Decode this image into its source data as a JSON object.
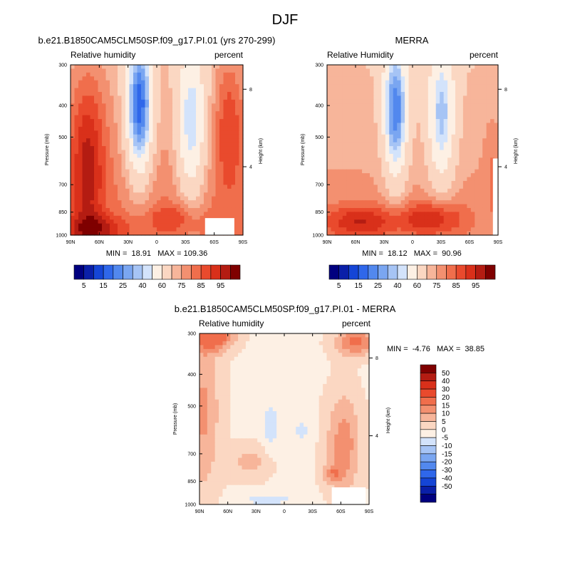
{
  "page_title": "DJF",
  "palette_abs": [
    "#00007f",
    "#0a1fa8",
    "#1545d6",
    "#2f67ea",
    "#5288ee",
    "#7aa6f1",
    "#a6c4f5",
    "#d3e3fb",
    "#fdf0e4",
    "#fbd7c2",
    "#f7b59a",
    "#f39070",
    "#f06e4c",
    "#e94a2d",
    "#d9301a",
    "#b41c12",
    "#7f0000"
  ],
  "palette_diff": [
    "#00007f",
    "#0a1fa8",
    "#1545d6",
    "#2f67ea",
    "#5288ee",
    "#7aa6f1",
    "#a6c4f5",
    "#d3e3fb",
    "#fdf0e4",
    "#fbd7c2",
    "#f7b59a",
    "#f39070",
    "#f06e4c",
    "#e94a2d",
    "#d9301a",
    "#b41c12",
    "#7f0000"
  ],
  "chart_data": [
    {
      "type": "heatmap",
      "title": "b.e21.B1850CAM5CLM50SP.f09_g17.PI.01 (yrs 270-299)",
      "left_label": "Relative humidity",
      "right_label": "percent",
      "xlabel": "",
      "ylabel": "Pressure (mb)",
      "ylabel_right": "Height (km)",
      "x_ticks": [
        "90N",
        "60N",
        "30N",
        "0",
        "30S",
        "60S",
        "90S"
      ],
      "y_ticks": [
        "300",
        "400",
        "500",
        "700",
        "850",
        "1000"
      ],
      "y_ticks_right": [
        "8",
        "4"
      ],
      "stats": "MIN =  18.91   MAX = 109.36",
      "colorbar_labels": [
        "5",
        "15",
        "25",
        "40",
        "60",
        "75",
        "85",
        "95"
      ],
      "levels": [
        5,
        10,
        15,
        20,
        25,
        30,
        35,
        40,
        50,
        60,
        65,
        70,
        75,
        80,
        85,
        90,
        95
      ],
      "min": 18.91,
      "max": 109.36
    },
    {
      "type": "heatmap",
      "title": "MERRA",
      "left_label": "Relative Humidity",
      "right_label": "percent",
      "xlabel": "",
      "ylabel": "Pressure (mb)",
      "ylabel_right": "Height (km)",
      "x_ticks": [
        "90N",
        "60N",
        "30N",
        "0",
        "30S",
        "60S",
        "90S"
      ],
      "y_ticks": [
        "300",
        "400",
        "500",
        "700",
        "850",
        "1000"
      ],
      "y_ticks_right": [
        "8",
        "4"
      ],
      "stats": "MIN =  18.12   MAX =  90.96",
      "colorbar_labels": [
        "5",
        "15",
        "25",
        "40",
        "60",
        "75",
        "85",
        "95"
      ],
      "levels": [
        5,
        10,
        15,
        20,
        25,
        30,
        35,
        40,
        50,
        60,
        65,
        70,
        75,
        80,
        85,
        90,
        95
      ],
      "min": 18.12,
      "max": 90.96
    },
    {
      "type": "heatmap",
      "title": "b.e21.B1850CAM5CLM50SP.f09_g17.PI.01 - MERRA",
      "left_label": "Relative humidity",
      "right_label": "percent",
      "xlabel": "",
      "ylabel": "Pressure (mb)",
      "ylabel_right": "Height (km)",
      "x_ticks": [
        "90N",
        "60N",
        "30N",
        "0",
        "30S",
        "60S",
        "90S"
      ],
      "y_ticks": [
        "300",
        "400",
        "500",
        "700",
        "850",
        "1000"
      ],
      "y_ticks_right": [
        "8",
        "4"
      ],
      "stats": "MIN =  -4.76   MAX =  38.85",
      "colorbar_labels": [
        "50",
        "40",
        "30",
        "20",
        "15",
        "10",
        "5",
        "0",
        "-5",
        "-10",
        "-15",
        "-20",
        "-30",
        "-40",
        "-50"
      ],
      "levels": [
        -50,
        -40,
        -30,
        -20,
        -15,
        -10,
        -5,
        0,
        5,
        10,
        15,
        20,
        30,
        40,
        50
      ],
      "min": -4.76,
      "max": 38.85
    }
  ]
}
